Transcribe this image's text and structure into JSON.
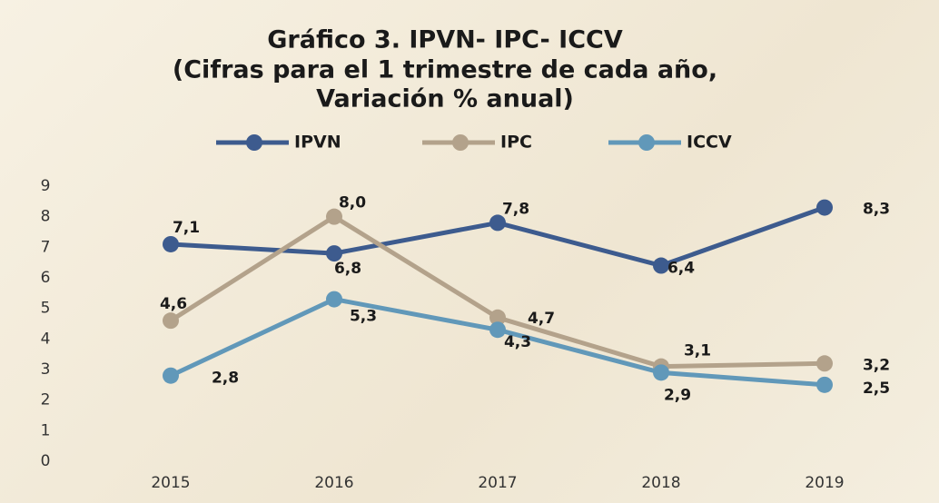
{
  "chart_data": {
    "type": "line",
    "title": [
      "Gráfico 3. IPVN- IPC- ICCV",
      "(Cifras para el 1 trimestre de cada año,",
      "Variación % anual)"
    ],
    "categories": [
      "2015",
      "2016",
      "2017",
      "2018",
      "2019"
    ],
    "series": [
      {
        "name": "IPVN",
        "color": "#3d5b8e",
        "values": [
          7.1,
          6.8,
          7.8,
          6.4,
          8.3
        ],
        "value_labels": [
          "7,1",
          "6,8",
          "7,8",
          "6,4",
          "8,3"
        ]
      },
      {
        "name": "IPC",
        "color": "#b3a28b",
        "values": [
          4.6,
          8.0,
          4.7,
          3.1,
          3.2
        ],
        "value_labels": [
          "4,6",
          "8,0",
          "4,7",
          "3,1",
          "3,2"
        ]
      },
      {
        "name": "ICCV",
        "color": "#6198b9",
        "values": [
          2.8,
          5.3,
          4.3,
          2.9,
          2.5
        ],
        "value_labels": [
          "2,8",
          "5,3",
          "4,3",
          "2,9",
          "2,5"
        ]
      }
    ],
    "ylim": [
      0,
      9
    ],
    "yticks": [
      0,
      1,
      2,
      3,
      4,
      5,
      6,
      7,
      8,
      9
    ],
    "grid": false,
    "legend": "top"
  }
}
